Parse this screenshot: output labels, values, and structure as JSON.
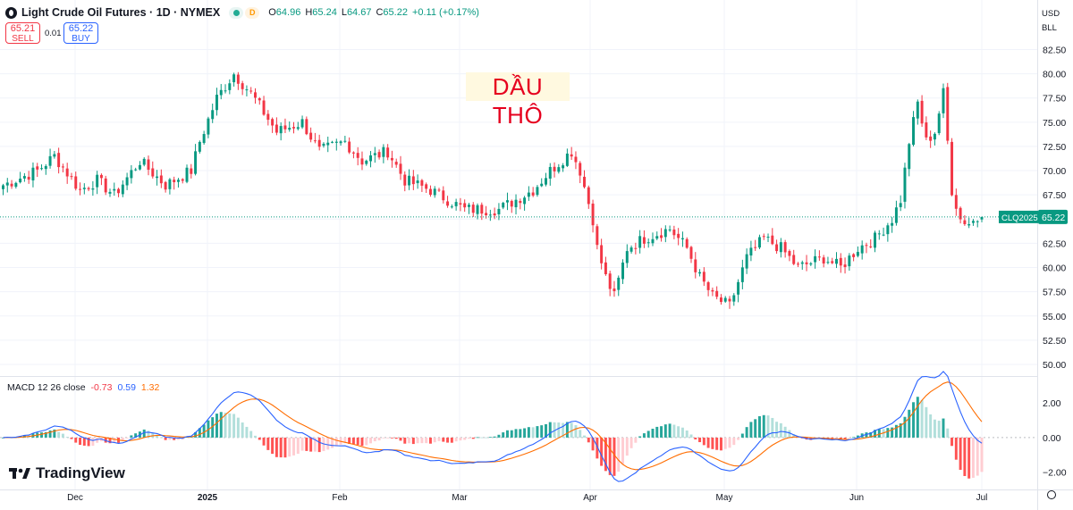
{
  "header": {
    "symbol_title": "Light Crude Oil Futures · 1D · NYMEX",
    "badge_d": "D",
    "ohlc": {
      "o_label": "O",
      "o": "64.96",
      "h_label": "H",
      "h": "65.24",
      "l_label": "L",
      "l": "64.67",
      "c_label": "C",
      "c": "65.22",
      "change": "+0.11 (+0.17%)"
    }
  },
  "trade": {
    "sell_price": "65.21",
    "sell_label": "SELL",
    "spread": "0.01",
    "buy_price": "65.22",
    "buy_label": "BUY"
  },
  "currency": {
    "line1": "USD",
    "line2": "BLL"
  },
  "watermark": "DẦU THÔ",
  "logo_text": "TradingView",
  "macd_legend": {
    "label": "MACD 12 26 close",
    "hist": "-0.73",
    "macd": "0.59",
    "signal": "1.32"
  },
  "colors": {
    "up": "#089981",
    "down": "#f23645",
    "macd_line": "#2962ff",
    "signal_line": "#ff6d00",
    "hist_up_strong": "#26a69a",
    "hist_up_weak": "#b2dfdb",
    "hist_down_strong": "#ff5252",
    "hist_down_weak": "#ffcdd2"
  },
  "chart_data": [
    {
      "type": "candlestick",
      "title": "Light Crude Oil Futures · 1D · NYMEX",
      "x_tick_labels": [
        "Dec",
        "2025",
        "Feb",
        "Mar",
        "Apr",
        "May",
        "Jun",
        "Jul"
      ],
      "y_ticks": [
        50.0,
        52.5,
        55.0,
        57.5,
        60.0,
        62.5,
        65.0,
        67.5,
        70.0,
        72.5,
        75.0,
        77.5,
        80.0,
        82.5
      ],
      "ylim": [
        48.8,
        86.6
      ],
      "grid": true,
      "last_price": 65.22,
      "last_price_label": "CLQ2025",
      "waypoints": [
        [
          0,
          68.5
        ],
        [
          8,
          70
        ],
        [
          12,
          71.5
        ],
        [
          18,
          68
        ],
        [
          22,
          69
        ],
        [
          26,
          67.5
        ],
        [
          32,
          71
        ],
        [
          38,
          68.5
        ],
        [
          44,
          70
        ],
        [
          46,
          73
        ],
        [
          50,
          77.5
        ],
        [
          54,
          80
        ],
        [
          58,
          78
        ],
        [
          64,
          74
        ],
        [
          70,
          75
        ],
        [
          74,
          72
        ],
        [
          80,
          73
        ],
        [
          84,
          71
        ],
        [
          90,
          72
        ],
        [
          94,
          69
        ],
        [
          100,
          68
        ],
        [
          108,
          66
        ],
        [
          116,
          66
        ],
        [
          124,
          68
        ],
        [
          128,
          70
        ],
        [
          133,
          72
        ],
        [
          135,
          70
        ],
        [
          138,
          65
        ],
        [
          139,
          62
        ],
        [
          141,
          59
        ],
        [
          143,
          57
        ],
        [
          146,
          62
        ],
        [
          150,
          63
        ],
        [
          156,
          64
        ],
        [
          160,
          62
        ],
        [
          163,
          59
        ],
        [
          166,
          57
        ],
        [
          170,
          56
        ],
        [
          174,
          61
        ],
        [
          178,
          63
        ],
        [
          182,
          62
        ],
        [
          186,
          60
        ],
        [
          192,
          61
        ],
        [
          196,
          60
        ],
        [
          200,
          62
        ],
        [
          204,
          63
        ],
        [
          208,
          65
        ],
        [
          210,
          67
        ],
        [
          212,
          73
        ],
        [
          214,
          77
        ],
        [
          216,
          73
        ],
        [
          218,
          74
        ],
        [
          220,
          78
        ],
        [
          222,
          68
        ],
        [
          224,
          65
        ],
        [
          226,
          64.6
        ],
        [
          229,
          65.2
        ]
      ],
      "real_candles": [
        {
          "o": 64.96,
          "h": 65.24,
          "l": 64.67,
          "c": 65.22
        }
      ]
    },
    {
      "type": "macd",
      "title": "MACD 12 26 close",
      "y_ticks": [
        2.0,
        0.0,
        -2.0
      ],
      "ylim": [
        -3,
        3.2
      ],
      "latest": {
        "histogram": -0.73,
        "macd": 0.59,
        "signal": 1.32
      }
    }
  ]
}
